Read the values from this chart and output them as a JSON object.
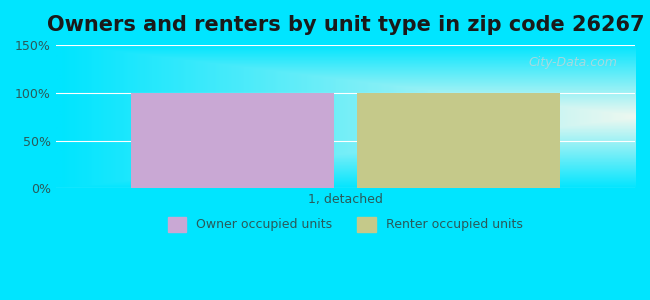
{
  "title": "Owners and renters by unit type in zip code 26267",
  "categories": [
    "1, detached"
  ],
  "owner_values": [
    100
  ],
  "renter_values": [
    100
  ],
  "owner_color": "#c9a8d4",
  "renter_color": "#c5c98a",
  "ylim": [
    0,
    150
  ],
  "yticks": [
    0,
    50,
    100,
    150
  ],
  "ytick_labels": [
    "0%",
    "50%",
    "100%",
    "150%"
  ],
  "xlabel": "",
  "ylabel": "",
  "legend_owner": "Owner occupied units",
  "legend_renter": "Renter occupied units",
  "bg_color_outer": "#00e5ff",
  "bg_color_inner": "#f0f8f0",
  "watermark": "City-Data.com",
  "title_fontsize": 15,
  "bar_width": 0.35
}
